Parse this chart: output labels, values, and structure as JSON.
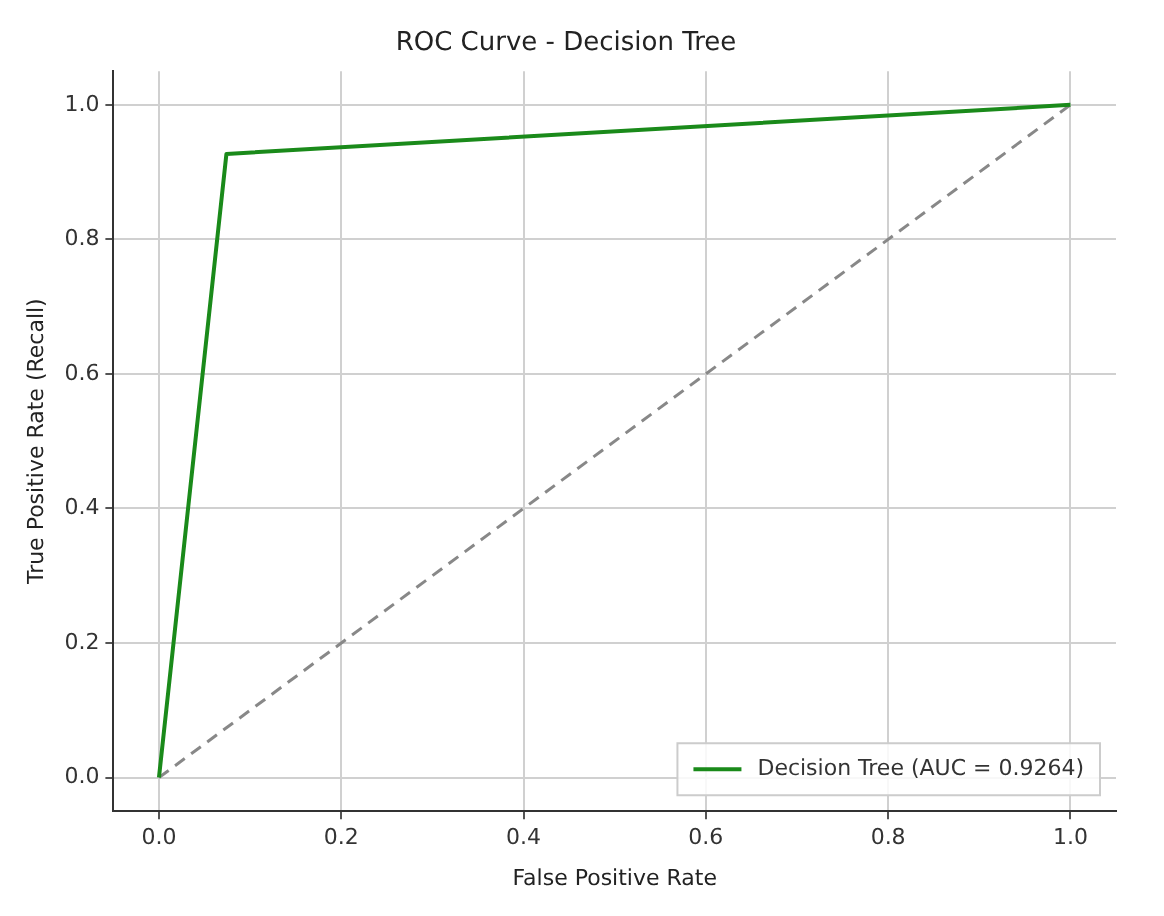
{
  "chart_data": {
    "type": "line",
    "title": "ROC Curve - Decision Tree",
    "xlabel": "False Positive Rate",
    "ylabel": "True Positive Rate (Recall)",
    "series": [
      {
        "name": "Decision Tree (AUC = 0.9264)",
        "color": "#1a8a1a",
        "x": [
          0,
          0.074,
          1
        ],
        "values": [
          0,
          0.927,
          1
        ],
        "line_style": "solid"
      },
      {
        "color": "#888888",
        "x": [
          0,
          1
        ],
        "values": [
          0,
          1
        ],
        "line_style": "dashed"
      }
    ],
    "xlim": [
      -0.05,
      1.05
    ],
    "ylim": [
      -0.05,
      1.05
    ],
    "xticks": [
      {
        "value": 0,
        "label": "0.0"
      },
      {
        "value": 0.2,
        "label": "0.2"
      },
      {
        "value": 0.4,
        "label": "0.4"
      },
      {
        "value": 0.6,
        "label": "0.6"
      },
      {
        "value": 0.8,
        "label": "0.8"
      },
      {
        "value": 1,
        "label": "1.0"
      }
    ],
    "yticks": [
      {
        "value": 0,
        "label": "0.0"
      },
      {
        "value": 0.2,
        "label": "0.2"
      },
      {
        "value": 0.4,
        "label": "0.4"
      },
      {
        "value": 0.6,
        "label": "0.6"
      },
      {
        "value": 0.8,
        "label": "0.8"
      },
      {
        "value": 1,
        "label": "1.0"
      }
    ],
    "grid": true,
    "legend": "bottom right",
    "marker": "none"
  }
}
